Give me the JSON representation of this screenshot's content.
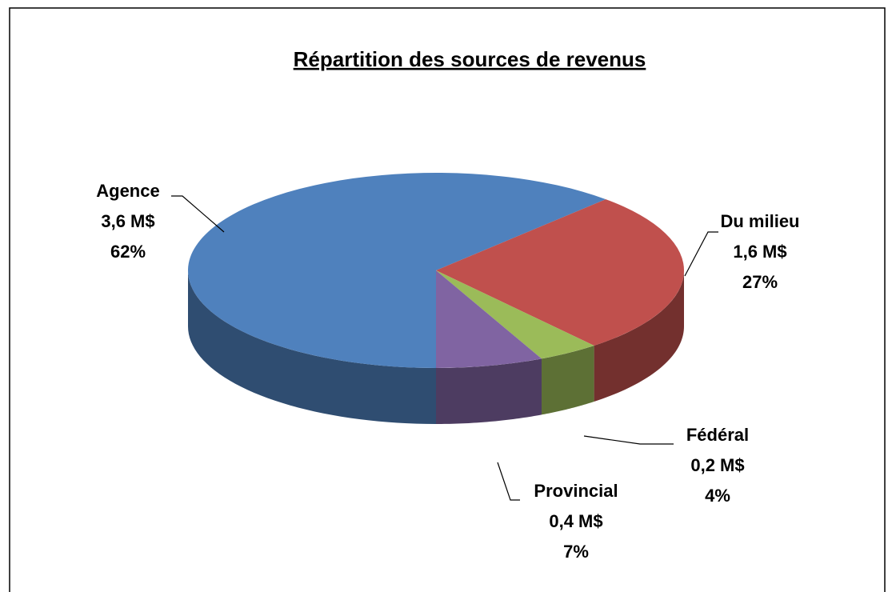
{
  "chart_data": {
    "type": "pie3d",
    "title": "Répartition des sources de revenus",
    "categories": [
      "Agence",
      "Du milieu",
      "Fédéral",
      "Provincial"
    ],
    "values": [
      62,
      27,
      4,
      7
    ],
    "value_labels": [
      "62%",
      "27%",
      "4%",
      "7%"
    ],
    "amounts": [
      3.6,
      1.6,
      0.2,
      0.4
    ],
    "amount_labels": [
      "3,6 M$",
      "1,6 M$",
      "0,2 M$",
      "0,4 M$"
    ],
    "colors": [
      "#4f81bd",
      "#c0504d",
      "#9bbb59",
      "#8064a2"
    ]
  }
}
